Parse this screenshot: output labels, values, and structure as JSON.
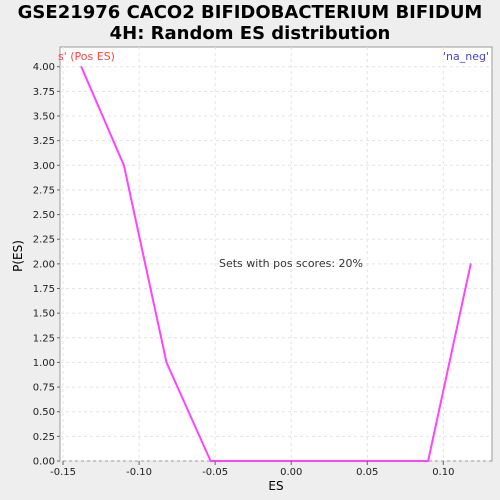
{
  "chart_data": {
    "type": "line",
    "title": "GSE21976 CACO2 BIFIDOBACTERIUM BIFIDUM\n4H: Random ES distribution",
    "xlabel": "ES",
    "ylabel": "P(ES)",
    "xlim": [
      -0.152,
      0.132
    ],
    "ylim": [
      0.0,
      4.2
    ],
    "xticks": [
      "-0.15",
      "-0.10",
      "-0.05",
      "0.00",
      "0.05",
      "0.10"
    ],
    "xtick_values": [
      -0.15,
      -0.1,
      -0.05,
      0.0,
      0.05,
      0.1
    ],
    "yticks": [
      "0.00",
      "0.25",
      "0.50",
      "0.75",
      "1.00",
      "1.25",
      "1.50",
      "1.75",
      "2.00",
      "2.25",
      "2.50",
      "2.75",
      "3.00",
      "3.25",
      "3.50",
      "3.75",
      "4.00"
    ],
    "ytick_values": [
      0.0,
      0.25,
      0.5,
      0.75,
      1.0,
      1.25,
      1.5,
      1.75,
      2.0,
      2.25,
      2.5,
      2.75,
      3.0,
      3.25,
      3.5,
      3.75,
      4.0
    ],
    "grid": true,
    "series": [
      {
        "color": "#ff44ff",
        "x": [
          -0.138,
          -0.11,
          -0.082,
          -0.053,
          -0.03,
          0.0,
          0.03,
          0.06,
          0.09,
          0.118
        ],
        "y": [
          4.0,
          3.0,
          1.0,
          0.0,
          0.0,
          0.0,
          0.0,
          0.0,
          0.0,
          2.0
        ]
      }
    ],
    "annotations": {
      "pos_label": "s' (Pos ES)",
      "pos_color": "#ff4444",
      "neg_label": "'na_neg'",
      "neg_color": "#4444cc",
      "center_text": "Sets with pos scores: 20%"
    }
  }
}
